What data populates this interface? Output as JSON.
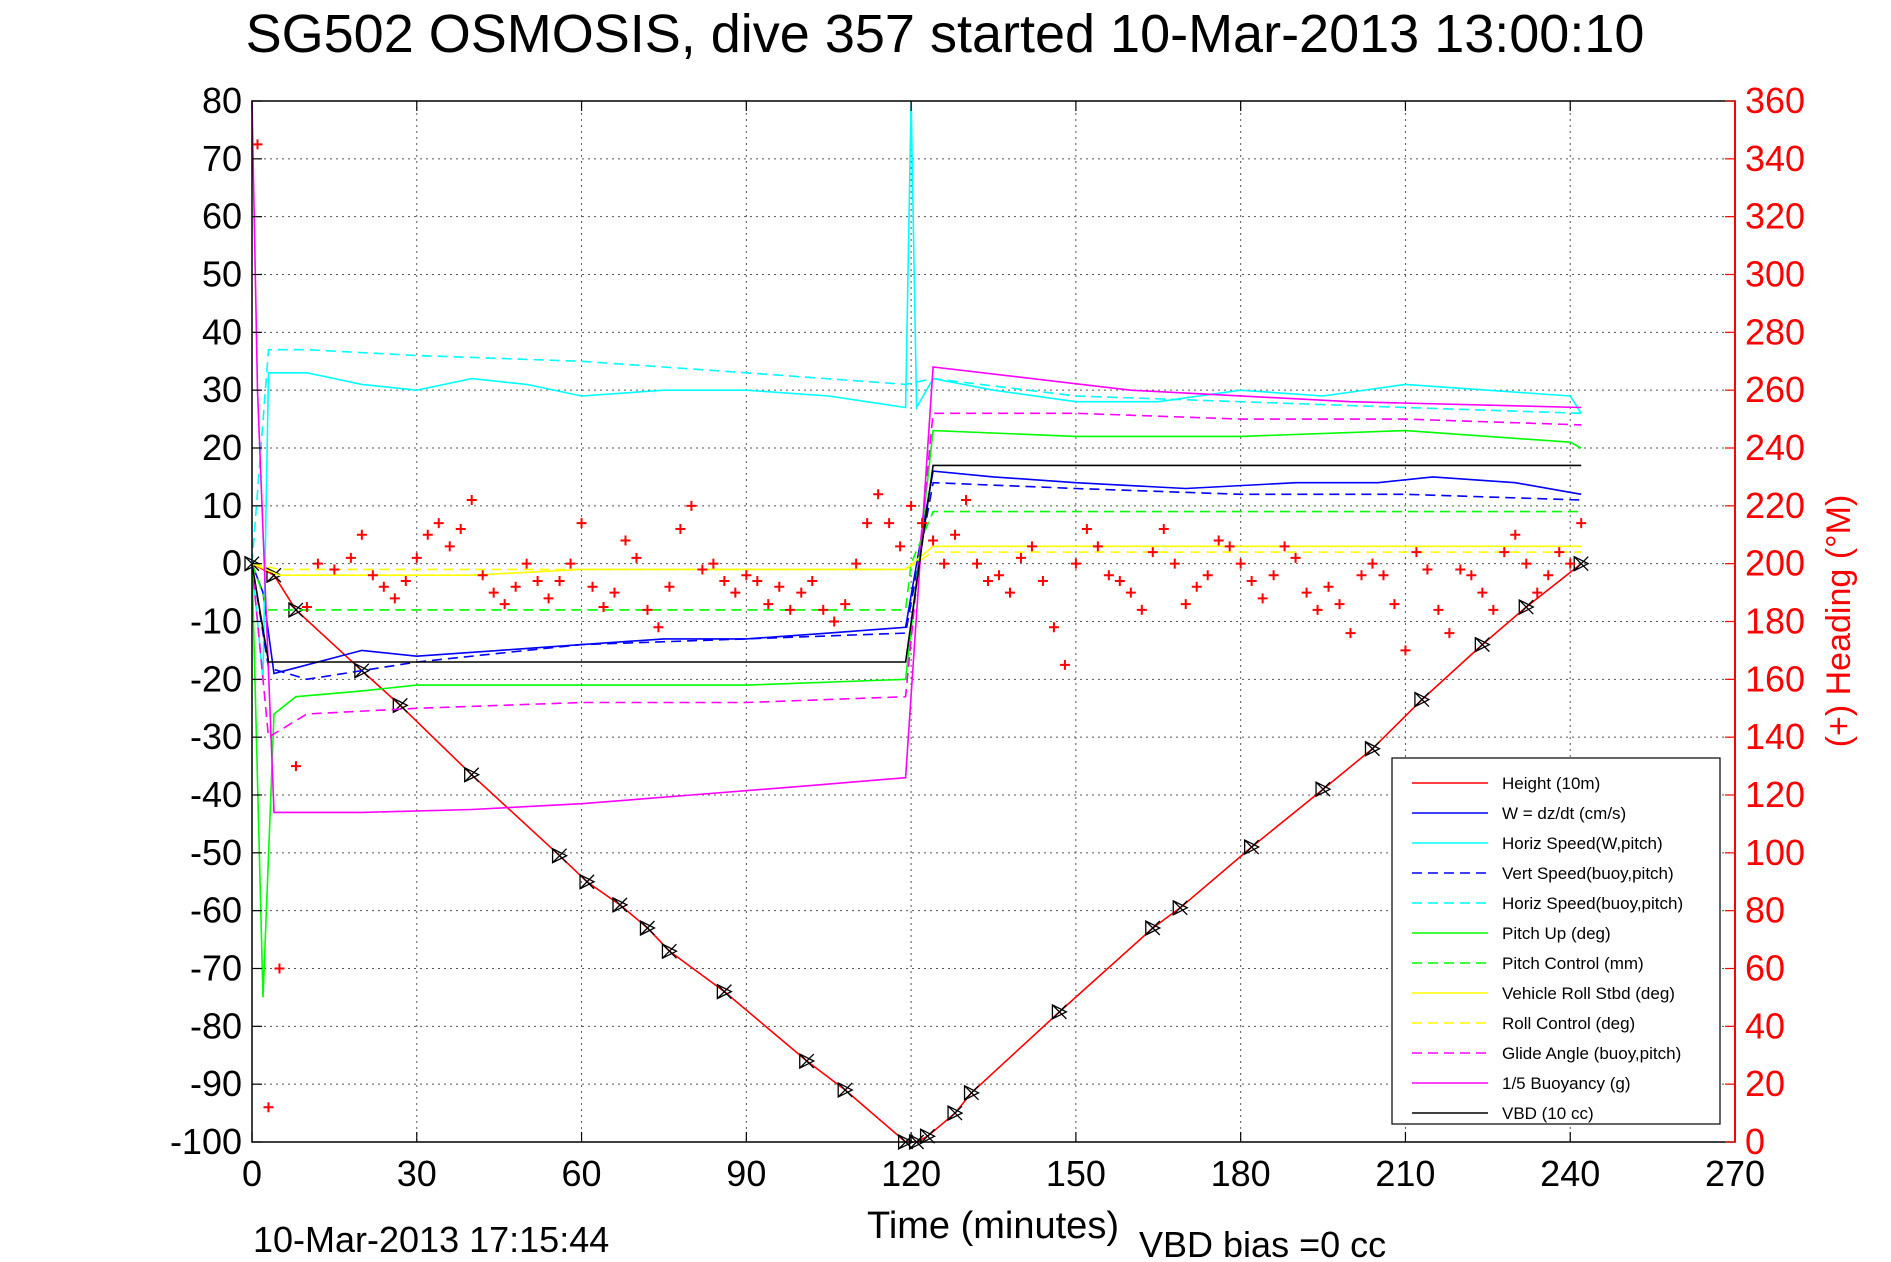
{
  "chart_data": {
    "type": "line",
    "title": "SG502 OSMOSIS, dive 357 started 10-Mar-2013 13:00:10",
    "xlabel": "Time (minutes)",
    "ylabel_right": "(+) Heading (°M)",
    "footer_left": "10-Mar-2013 17:15:44",
    "footer_right": "VBD bias =0 cc",
    "xlim": [
      0,
      270
    ],
    "ylim": [
      -100,
      80
    ],
    "ylim_right": [
      0,
      360
    ],
    "xticks": [
      "0",
      "30",
      "60",
      "90",
      "120",
      "150",
      "180",
      "210",
      "240",
      "270"
    ],
    "yticks": [
      "80",
      "70",
      "60",
      "50",
      "40",
      "30",
      "20",
      "10",
      "0",
      "-10",
      "-20",
      "-30",
      "-40",
      "-50",
      "-60",
      "-70",
      "-80",
      "-90",
      "-100"
    ],
    "yticks_right": [
      "360",
      "340",
      "320",
      "300",
      "280",
      "260",
      "240",
      "220",
      "200",
      "180",
      "160",
      "140",
      "120",
      "100",
      "80",
      "60",
      "40",
      "20",
      "0"
    ],
    "grid": true,
    "legend_position": "bottom-right",
    "colors": {
      "right_axis": "#ff0000",
      "axis": "#000000",
      "grid": "#555555"
    },
    "series": [
      {
        "name": "Height (10m)",
        "color": "#ff0000",
        "dash": "solid",
        "x": [
          0,
          4,
          8,
          20,
          27,
          40,
          56,
          61,
          67,
          72,
          76,
          86,
          101,
          108,
          119,
          121,
          123,
          128,
          131,
          147,
          164,
          169,
          182,
          195,
          204,
          213,
          224,
          232,
          242
        ],
        "y": [
          0,
          -2,
          -8,
          -18.5,
          -24.5,
          -36.5,
          -50.5,
          -55,
          -59,
          -63,
          -67,
          -74,
          -86,
          -91,
          -100,
          -100,
          -99,
          -95,
          -91.5,
          -77.5,
          -63,
          -59.5,
          -49,
          -39,
          -32,
          -23.5,
          -14,
          -7.5,
          0
        ]
      },
      {
        "name": "W = dz/dt (cm/s)",
        "color": "#0000ff",
        "dash": "solid",
        "x": [
          0,
          2,
          4,
          8,
          20,
          30,
          45,
          60,
          75,
          90,
          105,
          119,
          121,
          124,
          135,
          150,
          170,
          190,
          205,
          215,
          230,
          242
        ],
        "y": [
          0,
          -5,
          -19,
          -18,
          -15,
          -16,
          -15,
          -14,
          -13,
          -13,
          -12,
          -11,
          0,
          16,
          15,
          14,
          13,
          14,
          14,
          15,
          14,
          12
        ]
      },
      {
        "name": "Horiz Speed(W,pitch)",
        "color": "#00ffff",
        "dash": "solid",
        "x": [
          0,
          2,
          3,
          10,
          20,
          30,
          40,
          50,
          60,
          75,
          90,
          105,
          119,
          120,
          121,
          124,
          135,
          150,
          165,
          180,
          195,
          210,
          225,
          240,
          242
        ],
        "y": [
          0,
          -20,
          33,
          33,
          31,
          30,
          32,
          31,
          29,
          30,
          30,
          29,
          27,
          80,
          27,
          32,
          30,
          28,
          28,
          30,
          29,
          31,
          30,
          29,
          26
        ]
      },
      {
        "name": "Vert Speed(buoy,pitch)",
        "color": "#0000ff",
        "dash": "dashed",
        "x": [
          0,
          3,
          10,
          30,
          60,
          90,
          119,
          124,
          150,
          180,
          210,
          242
        ],
        "y": [
          0,
          -18,
          -20,
          -17,
          -14,
          -13,
          -12,
          14,
          13,
          12,
          12,
          11
        ]
      },
      {
        "name": "Horiz Speed(buoy,pitch)",
        "color": "#00ffff",
        "dash": "dashed",
        "x": [
          0,
          3,
          10,
          30,
          60,
          90,
          119,
          124,
          150,
          180,
          210,
          242
        ],
        "y": [
          0,
          37,
          37,
          36,
          35,
          33,
          31,
          32,
          29,
          28,
          27,
          26
        ]
      },
      {
        "name": "Pitch Up (deg)",
        "color": "#00ff00",
        "dash": "solid",
        "x": [
          0,
          2,
          4,
          8,
          20,
          30,
          60,
          90,
          119,
          124,
          150,
          180,
          210,
          240,
          242
        ],
        "y": [
          0,
          -75,
          -26,
          -23,
          -22,
          -21,
          -21,
          -21,
          -20,
          23,
          22,
          22,
          23,
          21,
          20
        ]
      },
      {
        "name": "Pitch Control (mm)",
        "color": "#00ff00",
        "dash": "dashed",
        "x": [
          0,
          3,
          119,
          120,
          124,
          242
        ],
        "y": [
          0,
          -8,
          -8,
          0,
          9,
          9
        ]
      },
      {
        "name": "Vehicle Roll Stbd (deg)",
        "color": "#ffff00",
        "dash": "solid",
        "x": [
          0,
          5,
          20,
          40,
          60,
          90,
          119,
          124,
          150,
          180,
          210,
          242
        ],
        "y": [
          0,
          -2,
          -2,
          -2,
          -1,
          -1,
          -1,
          3,
          3,
          3,
          3,
          3
        ]
      },
      {
        "name": "Roll Control (deg)",
        "color": "#ffff00",
        "dash": "dashed",
        "x": [
          0,
          5,
          20,
          40,
          60,
          90,
          119,
          124,
          150,
          180,
          210,
          242
        ],
        "y": [
          0,
          -1,
          -1,
          -1,
          -1,
          -1,
          -1,
          2,
          2,
          2,
          2,
          2
        ]
      },
      {
        "name": "Glide Angle (buoy,pitch)",
        "color": "#ff00ff",
        "dash": "dashed",
        "x": [
          0,
          3,
          10,
          30,
          60,
          90,
          119,
          124,
          150,
          180,
          210,
          242
        ],
        "y": [
          0,
          -30,
          -26,
          -25,
          -24,
          -24,
          -23,
          26,
          26,
          25,
          25,
          24
        ]
      },
      {
        "name": "1/5 Buoyancy (g)",
        "color": "#ff00ff",
        "dash": "solid",
        "x": [
          0,
          1,
          4,
          20,
          40,
          60,
          80,
          100,
          119,
          124,
          160,
          200,
          242
        ],
        "y": [
          80,
          30,
          -43,
          -43,
          -42.5,
          -41.5,
          -40,
          -38.5,
          -37,
          34,
          30,
          28,
          27
        ]
      },
      {
        "name": "VBD (10 cc)",
        "color": "#000000",
        "dash": "solid",
        "x": [
          0,
          3,
          119,
          124,
          242
        ],
        "y": [
          0,
          -17,
          -17,
          17,
          17
        ]
      },
      {
        "name": "",
        "axis": "right",
        "color": "#ff0000",
        "marker": "plus",
        "x": [
          1,
          3,
          5,
          8,
          10,
          12,
          15,
          18,
          20,
          22,
          24,
          26,
          28,
          30,
          32,
          34,
          36,
          38,
          40,
          42,
          44,
          46,
          48,
          50,
          52,
          54,
          56,
          58,
          60,
          62,
          64,
          66,
          68,
          70,
          72,
          74,
          76,
          78,
          80,
          82,
          84,
          86,
          88,
          90,
          92,
          94,
          96,
          98,
          100,
          102,
          104,
          106,
          108,
          110,
          112,
          114,
          116,
          118,
          120,
          122,
          124,
          126,
          128,
          130,
          132,
          134,
          136,
          138,
          140,
          142,
          144,
          146,
          148,
          150,
          152,
          154,
          156,
          158,
          160,
          162,
          164,
          166,
          168,
          170,
          172,
          174,
          176,
          178,
          180,
          182,
          184,
          186,
          188,
          190,
          192,
          194,
          196,
          198,
          200,
          202,
          204,
          206,
          208,
          210,
          212,
          214,
          216,
          218,
          220,
          222,
          224,
          226,
          228,
          230,
          232,
          234,
          236,
          238,
          240,
          242
        ],
        "y": [
          345,
          12,
          60,
          130,
          185,
          200,
          198,
          202,
          210,
          196,
          192,
          188,
          194,
          202,
          210,
          214,
          206,
          212,
          222,
          196,
          190,
          186,
          192,
          200,
          194,
          188,
          194,
          200,
          214,
          192,
          185,
          190,
          208,
          202,
          184,
          178,
          192,
          212,
          220,
          198,
          200,
          194,
          190,
          196,
          194,
          186,
          192,
          184,
          190,
          194,
          184,
          180,
          186,
          200,
          214,
          224,
          214,
          206,
          220,
          214,
          208,
          200,
          210,
          222,
          200,
          194,
          196,
          190,
          202,
          206,
          194,
          178,
          165,
          200,
          212,
          206,
          196,
          194,
          190,
          184,
          204,
          212,
          200,
          186,
          192,
          196,
          208,
          206,
          200,
          194,
          188,
          196,
          206,
          202,
          190,
          184,
          192,
          186,
          176,
          196,
          200,
          196,
          186,
          170,
          204,
          198,
          184,
          176,
          198,
          196,
          190,
          184,
          204,
          210,
          200,
          190,
          196,
          204,
          200,
          214
        ]
      }
    ]
  }
}
